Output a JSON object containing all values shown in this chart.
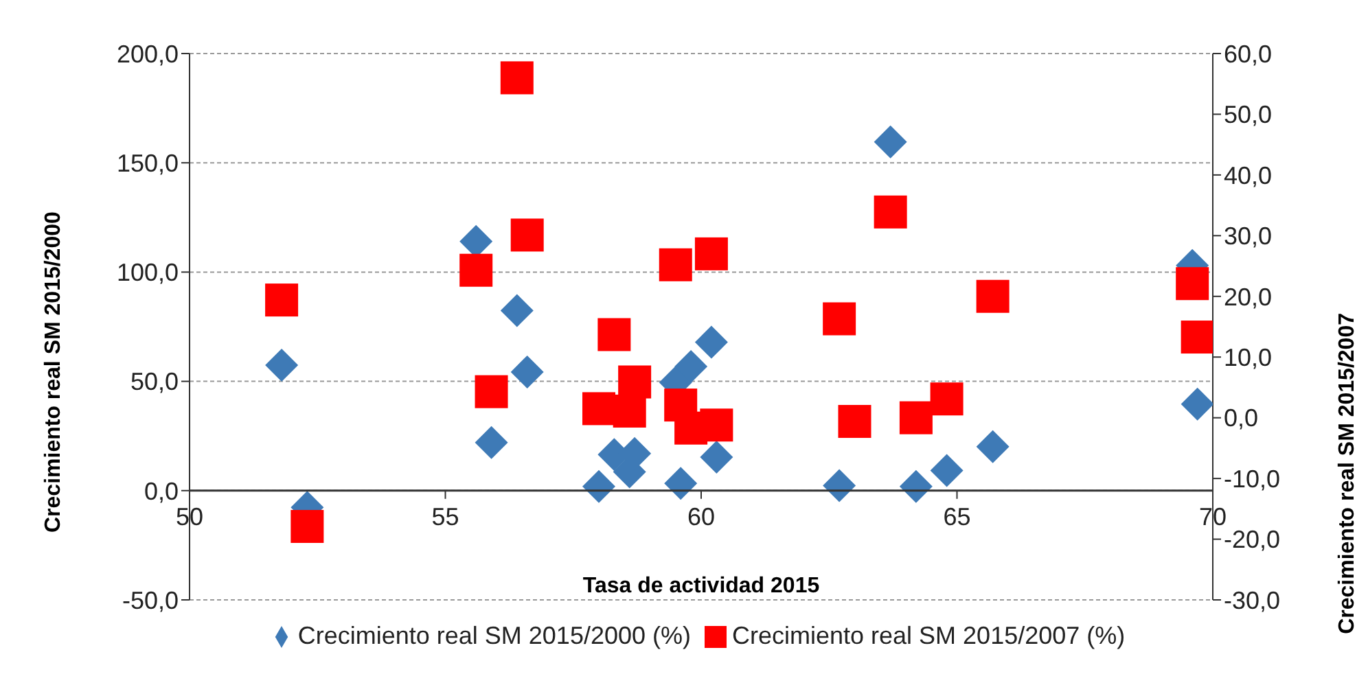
{
  "chart_data": {
    "type": "scatter",
    "xlabel": "Tasa de actividad 2015",
    "ylabel": "Crecimiento real SM 2015/2000",
    "y2label": "Crecimiento real SM 2015/2007",
    "xlim": [
      50,
      70
    ],
    "xticks": [
      50,
      55,
      60,
      65,
      70
    ],
    "ylim": [
      -50,
      200
    ],
    "yticks": [
      {
        "value": -50,
        "label": "-50,0"
      },
      {
        "value": 0,
        "label": "0,0"
      },
      {
        "value": 50,
        "label": "50,0"
      },
      {
        "value": 100,
        "label": "100,0"
      },
      {
        "value": 150,
        "label": "150,0"
      },
      {
        "value": 200,
        "label": "200,0"
      }
    ],
    "y2lim": [
      -30,
      60
    ],
    "y2ticks": [
      {
        "value": -30,
        "label": "-30,0"
      },
      {
        "value": -20,
        "label": "-20,0"
      },
      {
        "value": -10,
        "label": "-10,0"
      },
      {
        "value": 0,
        "label": "0,0"
      },
      {
        "value": 10,
        "label": "10,0"
      },
      {
        "value": 20,
        "label": "20,0"
      },
      {
        "value": 30,
        "label": "30,0"
      },
      {
        "value": 40,
        "label": "40,0"
      },
      {
        "value": 50,
        "label": "50,0"
      },
      {
        "value": 60,
        "label": "60,0"
      }
    ],
    "grid": "y",
    "legend": "bottom",
    "series": [
      {
        "name": "Crecimiento real SM 2015/2000 (%)",
        "color": "#3e7ab6",
        "marker": "diamond",
        "x": [
          51.8,
          52.3,
          55.6,
          56.4,
          56.6,
          55.9,
          58.0,
          58.3,
          58.6,
          58.7,
          59.5,
          59.8,
          59.6,
          60.2,
          60.3,
          62.7,
          63.7,
          64.2,
          64.8,
          65.7,
          69.6,
          69.7
        ],
        "values": [
          57.4,
          -7.7,
          114,
          82.4,
          54.3,
          22,
          1.9,
          16.5,
          8.6,
          17,
          49.5,
          56.8,
          3.3,
          67.9,
          15.3,
          2.3,
          159.6,
          1.9,
          9.2,
          20.1,
          103,
          39.6
        ]
      },
      {
        "name": "Crecimiento real SM 2015/2007 (%)",
        "color": "#ff0000",
        "marker": "square",
        "axis": "y2",
        "x": [
          51.8,
          52.3,
          56.4,
          56.6,
          55.6,
          55.9,
          58.3,
          58.0,
          58.7,
          58.6,
          59.5,
          59.6,
          59.8,
          60.2,
          60.3,
          62.7,
          63.0,
          63.7,
          64.2,
          64.8,
          65.7,
          69.6,
          69.7
        ],
        "values": [
          19.4,
          -17.9,
          56.0,
          30.1,
          24.3,
          4.3,
          13.7,
          1.5,
          5.9,
          1.1,
          25.2,
          2.1,
          -1.7,
          27.0,
          -1.2,
          16.3,
          -0.6,
          33.9,
          0.0,
          3.1,
          20.0,
          22.1,
          13.3
        ]
      }
    ]
  }
}
